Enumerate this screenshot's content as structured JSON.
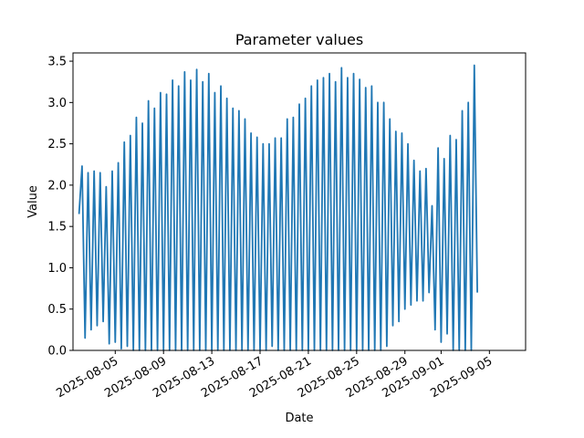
{
  "chart_data": {
    "type": "line",
    "title": "Parameter values",
    "xlabel": "Date",
    "ylabel": "Value",
    "ylim": [
      0.0,
      3.6
    ],
    "xlim": [
      "2025-08-01T12:00",
      "2025-09-08T00:00"
    ],
    "grid": false,
    "color": "#1f77b4",
    "y_ticks": [
      "0.0",
      "0.5",
      "1.0",
      "1.5",
      "2.0",
      "2.5",
      "3.0",
      "3.5"
    ],
    "x_ticks": [
      "2025-08-05",
      "2025-08-09",
      "2025-08-13",
      "2025-08-17",
      "2025-08-21",
      "2025-08-25",
      "2025-08-29",
      "2025-09-01",
      "2025-09-05"
    ],
    "series": [
      {
        "name": "",
        "points": [
          [
            "2025-08-02T00:00",
            1.65
          ],
          [
            "2025-08-02T06:00",
            2.23
          ],
          [
            "2025-08-02T12:00",
            0.15
          ],
          [
            "2025-08-02T18:00",
            2.15
          ],
          [
            "2025-08-03T00:00",
            0.25
          ],
          [
            "2025-08-03T06:00",
            2.17
          ],
          [
            "2025-08-03T12:00",
            0.3
          ],
          [
            "2025-08-03T18:00",
            2.15
          ],
          [
            "2025-08-04T00:00",
            0.35
          ],
          [
            "2025-08-04T06:00",
            1.98
          ],
          [
            "2025-08-04T12:00",
            0.08
          ],
          [
            "2025-08-04T18:00",
            2.17
          ],
          [
            "2025-08-05T00:00",
            0.1
          ],
          [
            "2025-08-05T06:00",
            2.27
          ],
          [
            "2025-08-05T12:00",
            0.02
          ],
          [
            "2025-08-05T18:00",
            2.52
          ],
          [
            "2025-08-06T00:00",
            0.05
          ],
          [
            "2025-08-06T06:00",
            2.6
          ],
          [
            "2025-08-06T12:00",
            0.0
          ],
          [
            "2025-08-06T18:00",
            2.82
          ],
          [
            "2025-08-07T00:00",
            0.0
          ],
          [
            "2025-08-07T06:00",
            2.75
          ],
          [
            "2025-08-07T12:00",
            0.0
          ],
          [
            "2025-08-07T18:00",
            3.02
          ],
          [
            "2025-08-08T00:00",
            0.0
          ],
          [
            "2025-08-08T06:00",
            2.93
          ],
          [
            "2025-08-08T12:00",
            0.0
          ],
          [
            "2025-08-08T18:00",
            3.12
          ],
          [
            "2025-08-09T00:00",
            0.0
          ],
          [
            "2025-08-09T06:00",
            3.1
          ],
          [
            "2025-08-09T12:00",
            0.0
          ],
          [
            "2025-08-09T18:00",
            3.27
          ],
          [
            "2025-08-10T00:00",
            0.0
          ],
          [
            "2025-08-10T06:00",
            3.2
          ],
          [
            "2025-08-10T12:00",
            0.0
          ],
          [
            "2025-08-10T18:00",
            3.37
          ],
          [
            "2025-08-11T00:00",
            0.0
          ],
          [
            "2025-08-11T06:00",
            3.27
          ],
          [
            "2025-08-11T12:00",
            0.0
          ],
          [
            "2025-08-11T18:00",
            3.4
          ],
          [
            "2025-08-12T00:00",
            0.0
          ],
          [
            "2025-08-12T06:00",
            3.25
          ],
          [
            "2025-08-12T12:00",
            0.0
          ],
          [
            "2025-08-12T18:00",
            3.35
          ],
          [
            "2025-08-13T00:00",
            0.0
          ],
          [
            "2025-08-13T06:00",
            3.12
          ],
          [
            "2025-08-13T12:00",
            0.0
          ],
          [
            "2025-08-13T18:00",
            3.2
          ],
          [
            "2025-08-14T00:00",
            0.0
          ],
          [
            "2025-08-14T06:00",
            3.05
          ],
          [
            "2025-08-14T12:00",
            0.0
          ],
          [
            "2025-08-14T18:00",
            2.93
          ],
          [
            "2025-08-15T00:00",
            0.0
          ],
          [
            "2025-08-15T06:00",
            2.9
          ],
          [
            "2025-08-15T12:00",
            0.0
          ],
          [
            "2025-08-15T18:00",
            2.8
          ],
          [
            "2025-08-16T00:00",
            0.0
          ],
          [
            "2025-08-16T06:00",
            2.63
          ],
          [
            "2025-08-16T12:00",
            0.0
          ],
          [
            "2025-08-16T18:00",
            2.58
          ],
          [
            "2025-08-17T00:00",
            0.0
          ],
          [
            "2025-08-17T06:00",
            2.5
          ],
          [
            "2025-08-17T12:00",
            0.0
          ],
          [
            "2025-08-17T18:00",
            2.5
          ],
          [
            "2025-08-18T00:00",
            0.05
          ],
          [
            "2025-08-18T06:00",
            2.57
          ],
          [
            "2025-08-18T12:00",
            0.0
          ],
          [
            "2025-08-18T18:00",
            2.57
          ],
          [
            "2025-08-19T00:00",
            0.0
          ],
          [
            "2025-08-19T06:00",
            2.8
          ],
          [
            "2025-08-19T12:00",
            0.0
          ],
          [
            "2025-08-19T18:00",
            2.82
          ],
          [
            "2025-08-20T00:00",
            0.0
          ],
          [
            "2025-08-20T06:00",
            2.98
          ],
          [
            "2025-08-20T12:00",
            0.0
          ],
          [
            "2025-08-20T18:00",
            3.05
          ],
          [
            "2025-08-21T00:00",
            0.0
          ],
          [
            "2025-08-21T06:00",
            3.2
          ],
          [
            "2025-08-21T12:00",
            0.0
          ],
          [
            "2025-08-21T18:00",
            3.27
          ],
          [
            "2025-08-22T00:00",
            0.0
          ],
          [
            "2025-08-22T06:00",
            3.3
          ],
          [
            "2025-08-22T12:00",
            0.0
          ],
          [
            "2025-08-22T18:00",
            3.35
          ],
          [
            "2025-08-23T00:00",
            0.0
          ],
          [
            "2025-08-23T06:00",
            3.25
          ],
          [
            "2025-08-23T12:00",
            0.0
          ],
          [
            "2025-08-23T18:00",
            3.42
          ],
          [
            "2025-08-24T00:00",
            0.0
          ],
          [
            "2025-08-24T06:00",
            3.3
          ],
          [
            "2025-08-24T12:00",
            0.0
          ],
          [
            "2025-08-24T18:00",
            3.35
          ],
          [
            "2025-08-25T00:00",
            0.0
          ],
          [
            "2025-08-25T06:00",
            3.28
          ],
          [
            "2025-08-25T12:00",
            0.0
          ],
          [
            "2025-08-25T18:00",
            3.18
          ],
          [
            "2025-08-26T00:00",
            0.0
          ],
          [
            "2025-08-26T06:00",
            3.2
          ],
          [
            "2025-08-26T12:00",
            0.0
          ],
          [
            "2025-08-26T18:00",
            3.0
          ],
          [
            "2025-08-27T00:00",
            0.0
          ],
          [
            "2025-08-27T06:00",
            3.0
          ],
          [
            "2025-08-27T12:00",
            0.05
          ],
          [
            "2025-08-27T18:00",
            2.8
          ],
          [
            "2025-08-28T00:00",
            0.3
          ],
          [
            "2025-08-28T06:00",
            2.65
          ],
          [
            "2025-08-28T12:00",
            0.35
          ],
          [
            "2025-08-28T18:00",
            2.63
          ],
          [
            "2025-08-29T00:00",
            0.5
          ],
          [
            "2025-08-29T06:00",
            2.5
          ],
          [
            "2025-08-29T12:00",
            0.55
          ],
          [
            "2025-08-29T18:00",
            2.3
          ],
          [
            "2025-08-30T00:00",
            0.6
          ],
          [
            "2025-08-30T06:00",
            2.17
          ],
          [
            "2025-08-30T12:00",
            0.6
          ],
          [
            "2025-08-30T18:00",
            2.2
          ],
          [
            "2025-08-31T00:00",
            0.7
          ],
          [
            "2025-08-31T06:00",
            1.75
          ],
          [
            "2025-08-31T12:00",
            0.25
          ],
          [
            "2025-08-31T18:00",
            2.45
          ],
          [
            "2025-09-01T00:00",
            0.1
          ],
          [
            "2025-09-01T06:00",
            2.32
          ],
          [
            "2025-09-01T12:00",
            0.2
          ],
          [
            "2025-09-01T18:00",
            2.6
          ],
          [
            "2025-09-02T00:00",
            0.0
          ],
          [
            "2025-09-02T06:00",
            2.55
          ],
          [
            "2025-09-02T12:00",
            0.0
          ],
          [
            "2025-09-02T18:00",
            2.9
          ],
          [
            "2025-09-03T00:00",
            0.0
          ],
          [
            "2025-09-03T06:00",
            3.0
          ],
          [
            "2025-09-03T12:00",
            0.0
          ],
          [
            "2025-09-03T18:00",
            3.45
          ],
          [
            "2025-09-04T00:00",
            0.7
          ]
        ]
      }
    ]
  }
}
